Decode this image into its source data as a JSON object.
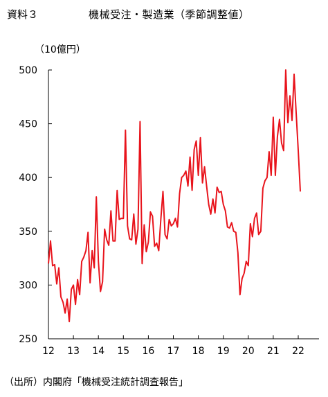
{
  "header": {
    "doc_label": "資料３",
    "title": "機械受注・製造業（季節調整値）"
  },
  "unit_label": "（10億円）",
  "source_note": "（出所）内閣府「機械受注統計調査報告」",
  "chart_data": {
    "type": "line",
    "title": "機械受注・製造業（季節調整値）",
    "xlabel": "",
    "ylabel": "（10億円）",
    "ylim": [
      250,
      500
    ],
    "yticks": [
      250,
      300,
      350,
      400,
      450,
      500
    ],
    "xlim": [
      2012.0,
      2022.917
    ],
    "xtick_values": [
      2012,
      2013,
      2014,
      2015,
      2016,
      2017,
      2018,
      2019,
      2020,
      2021,
      2022
    ],
    "xtick_labels": [
      "12",
      "13",
      "14",
      "15",
      "16",
      "17",
      "18",
      "19",
      "20",
      "21",
      "22"
    ],
    "grid": false,
    "legend": "none",
    "line_color": "#e8141c",
    "series": [
      {
        "start": "2012-01",
        "values": [
          320,
          341,
          318,
          319,
          301,
          316,
          289,
          284,
          274,
          287,
          266,
          296,
          300,
          282,
          305,
          291,
          322,
          326,
          332,
          349,
          302,
          332,
          316,
          382,
          322,
          294,
          303,
          352,
          342,
          337,
          369,
          341,
          341,
          388,
          361,
          362,
          362,
          444,
          355,
          343,
          342,
          366,
          338,
          352,
          452,
          320,
          356,
          331,
          340,
          368,
          364,
          336,
          339,
          332,
          362,
          387,
          347,
          343,
          361,
          355,
          357,
          362,
          354,
          385,
          400,
          402,
          406,
          392,
          419,
          388,
          426,
          434,
          402,
          437,
          395,
          410,
          392,
          375,
          366,
          380,
          367,
          391,
          386,
          387,
          375,
          369,
          354,
          353,
          358,
          350,
          349,
          330,
          291,
          306,
          311,
          322,
          318,
          357,
          345,
          362,
          367,
          347,
          350,
          390,
          397,
          400,
          424,
          402,
          456,
          402,
          438,
          454,
          432,
          425,
          500,
          451,
          476,
          453,
          496,
          460,
          425,
          387
        ]
      }
    ]
  }
}
